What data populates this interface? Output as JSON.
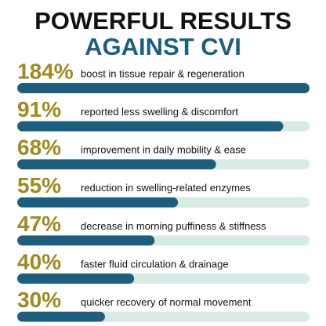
{
  "chart_data": {
    "type": "bar",
    "orientation": "horizontal",
    "title": "POWERFUL RESULTS",
    "subtitle": "AGAINST CVI",
    "categories": [
      "boost in tissue repair & regeneration",
      "reported less swelling & discomfort",
      "improvement in daily mobility & ease",
      "reduction in swelling-related enzymes",
      "decrease in morning puffiness & stiffness",
      "faster fluid circulation & drainage",
      "quicker recovery of normal movement"
    ],
    "values": [
      184,
      91,
      68,
      55,
      47,
      40,
      30
    ],
    "value_labels": [
      "184%",
      "91%",
      "68%",
      "55%",
      "47%",
      "40%",
      "30%"
    ],
    "xlim": [
      0,
      100
    ],
    "color": "#1b5e80",
    "track_color": "#d6ece2",
    "label_color": "#a08a1c"
  }
}
